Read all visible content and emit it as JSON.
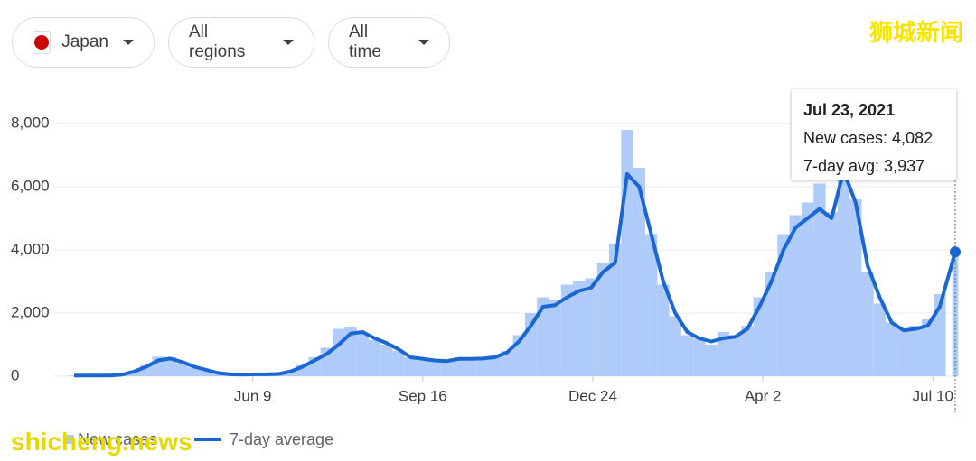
{
  "controls": [
    "Japan",
    "All regions",
    "All time"
  ],
  "watermarks": [
    "狮城新闻",
    "shicheng.news"
  ],
  "tooltip": {
    "title": "Jul 23, 2021",
    "lines": [
      "New cases: 4,082",
      "7-day avg: 3,937"
    ]
  },
  "chart_data": {
    "type": "bar-line",
    "x": [
      0,
      7,
      14,
      21,
      28,
      35,
      42,
      49,
      56,
      63,
      70,
      77,
      84,
      91,
      98,
      105,
      112,
      119,
      126,
      133,
      140,
      147,
      154,
      161,
      168,
      175,
      182,
      189,
      196,
      203,
      210,
      217,
      224,
      231,
      238,
      245,
      252,
      259,
      266,
      273,
      280,
      287,
      294,
      301,
      308,
      315,
      322,
      329,
      336,
      343,
      350,
      357,
      364,
      371,
      378,
      385,
      392,
      399,
      406,
      413,
      420,
      427,
      434,
      441,
      448,
      455,
      462,
      469,
      476,
      483,
      490,
      497,
      504,
      513
    ],
    "xlim": [
      0,
      513
    ],
    "xticks": [
      {
        "value": 104,
        "label": "Jun 9"
      },
      {
        "value": 203,
        "label": "Sep 16"
      },
      {
        "value": 302,
        "label": "Dec 24"
      },
      {
        "value": 401,
        "label": "Apr 2"
      },
      {
        "value": 500,
        "label": "Jul 10"
      }
    ],
    "ylim": [
      0,
      8000
    ],
    "yticks": [
      0,
      {
        "value": 2000,
        "label": "2,000"
      },
      {
        "value": 4000,
        "label": "4,000"
      },
      {
        "value": 6000,
        "label": "6,000"
      },
      {
        "value": 8000,
        "label": "8,000"
      }
    ],
    "grid": true,
    "series": [
      {
        "name": "New cases",
        "color": "#aecbfa",
        "kind": "bar",
        "values": [
          20,
          20,
          25,
          30,
          60,
          180,
          350,
          620,
          600,
          420,
          280,
          190,
          90,
          60,
          50,
          60,
          70,
          90,
          180,
          350,
          600,
          900,
          1500,
          1550,
          1350,
          1150,
          1000,
          800,
          600,
          560,
          520,
          480,
          560,
          580,
          600,
          650,
          800,
          1300,
          2000,
          2500,
          2400,
          2900,
          3000,
          3100,
          3600,
          4200,
          7800,
          6600,
          4500,
          2900,
          1900,
          1300,
          1200,
          1000,
          1400,
          1300,
          1600,
          2500,
          3300,
          4500,
          5100,
          5500,
          6100,
          5200,
          6900,
          5600,
          3300,
          2300,
          1700,
          1500,
          1600,
          1800,
          2600,
          4082
        ]
      },
      {
        "name": "7-day average",
        "color": "#1a66d2",
        "kind": "line",
        "values": [
          20,
          20,
          20,
          20,
          50,
          150,
          300,
          500,
          560,
          450,
          300,
          200,
          100,
          60,
          50,
          60,
          60,
          70,
          150,
          300,
          500,
          700,
          1000,
          1350,
          1400,
          1200,
          1050,
          850,
          600,
          550,
          500,
          480,
          550,
          550,
          560,
          600,
          750,
          1100,
          1600,
          2200,
          2250,
          2500,
          2700,
          2800,
          3300,
          3600,
          6400,
          6000,
          4500,
          3000,
          2000,
          1400,
          1200,
          1100,
          1200,
          1250,
          1500,
          2200,
          3000,
          4000,
          4700,
          5000,
          5300,
          5000,
          6500,
          5500,
          3500,
          2500,
          1700,
          1450,
          1500,
          1600,
          2200,
          3937
        ]
      }
    ]
  }
}
